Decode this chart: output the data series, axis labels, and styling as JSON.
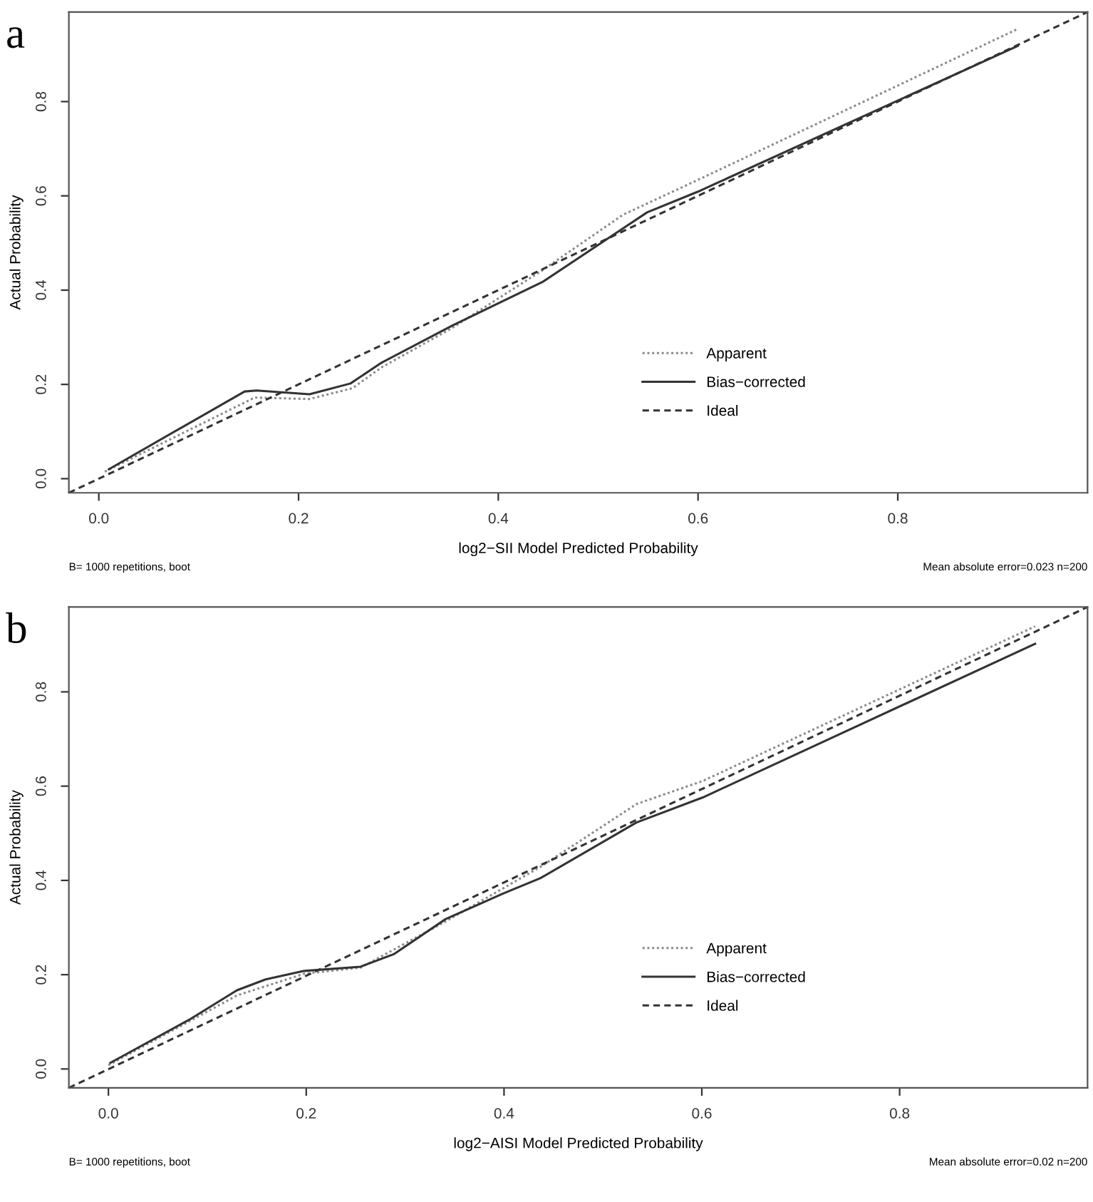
{
  "chart_data": [
    {
      "type": "line",
      "title": "a",
      "xlabel": "log2−SII Model Predicted Probability",
      "ylabel": "Actual Probability",
      "xlim": [
        -0.03,
        0.99
      ],
      "ylim": [
        -0.03,
        0.99
      ],
      "xticks": [
        {
          "value": 0,
          "label": "0.0"
        },
        0.2,
        0.4,
        0.6,
        0.8
      ],
      "yticks": [
        {
          "value": 0,
          "label": "0.0"
        },
        0.2,
        0.4,
        0.6,
        0.8
      ],
      "grid": false,
      "legend": "bottom right",
      "marker": "none",
      "annotations": [
        "B= 1000 repetitions, boot",
        "Mean absolute error=0.023 n=200"
      ],
      "series": [
        {
          "name": "Apparent",
          "color": "#8c8c8c",
          "line_style": "dotted",
          "x": [
            0.006,
            0.156,
            0.211,
            0.254,
            0.283,
            0.354,
            0.444,
            0.525,
            0.6,
            0.92
          ],
          "values": [
            0.015,
            0.172,
            0.169,
            0.192,
            0.236,
            0.32,
            0.442,
            0.56,
            0.634,
            0.954
          ]
        },
        {
          "name": "Bias−corrected",
          "color": "#333333",
          "line_style": "solid",
          "x": [
            0.01,
            0.146,
            0.158,
            0.178,
            0.211,
            0.252,
            0.283,
            0.354,
            0.444,
            0.525,
            0.549,
            0.6,
            0.92
          ],
          "values": [
            0.02,
            0.185,
            0.187,
            0.184,
            0.179,
            0.202,
            0.246,
            0.325,
            0.417,
            0.531,
            0.565,
            0.609,
            0.918
          ]
        },
        {
          "name": "Ideal",
          "color": "#333333",
          "line_style": "dashed",
          "x": [
            -0.03,
            0.99
          ],
          "values": [
            -0.03,
            0.99
          ]
        }
      ]
    },
    {
      "type": "line",
      "title": "b",
      "xlabel": "log2−AISI Model Predicted Probability",
      "ylabel": "Actual Probability",
      "xlim": [
        -0.04,
        0.99
      ],
      "ylim": [
        -0.04,
        0.98
      ],
      "xticks": [
        {
          "value": 0,
          "label": "0.0"
        },
        0.2,
        0.4,
        0.6,
        0.8
      ],
      "yticks": [
        {
          "value": 0,
          "label": "0.0"
        },
        0.2,
        0.4,
        0.6,
        0.8
      ],
      "grid": false,
      "legend": "bottom right",
      "marker": "none",
      "annotations": [
        "B= 1000 repetitions, boot",
        "Mean absolute error=0.02 n=200"
      ],
      "series": [
        {
          "name": "Apparent",
          "color": "#8c8c8c",
          "line_style": "dotted",
          "x": [
            0.0,
            0.13,
            0.198,
            0.255,
            0.341,
            0.437,
            0.534,
            0.601,
            0.937
          ],
          "values": [
            0.008,
            0.156,
            0.202,
            0.215,
            0.313,
            0.429,
            0.562,
            0.611,
            0.939
          ]
        },
        {
          "name": "Bias−corrected",
          "color": "#333333",
          "line_style": "solid",
          "x": [
            0.002,
            0.083,
            0.13,
            0.159,
            0.198,
            0.255,
            0.289,
            0.341,
            0.399,
            0.437,
            0.534,
            0.601,
            0.937
          ],
          "values": [
            0.013,
            0.106,
            0.167,
            0.19,
            0.208,
            0.217,
            0.244,
            0.318,
            0.372,
            0.405,
            0.523,
            0.576,
            0.902
          ]
        },
        {
          "name": "Ideal",
          "color": "#333333",
          "line_style": "dashed",
          "x": [
            -0.04,
            0.99
          ],
          "values": [
            -0.04,
            0.98
          ]
        }
      ]
    }
  ]
}
